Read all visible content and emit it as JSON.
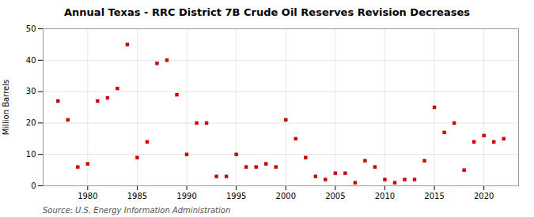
{
  "chart_data": {
    "type": "scatter",
    "title": "Annual Texas - RRC District 7B Crude Oil Reserves Revision Decreases",
    "ylabel": "Million Barrels",
    "source": "Source: U.S. Energy Information Administration",
    "color": "#cc0000",
    "marker": "square",
    "grid": true,
    "xlim": [
      1975.5,
      2023.5
    ],
    "ylim": [
      0,
      50
    ],
    "xticks": [
      1980,
      1985,
      1990,
      1995,
      2000,
      2005,
      2010,
      2015,
      2020
    ],
    "yticks": [
      0,
      10,
      20,
      30,
      40,
      50
    ],
    "x": [
      1977,
      1978,
      1979,
      1980,
      1981,
      1982,
      1983,
      1984,
      1985,
      1986,
      1987,
      1988,
      1989,
      1990,
      1991,
      1992,
      1993,
      1994,
      1995,
      1996,
      1997,
      1998,
      1999,
      2000,
      2001,
      2002,
      2003,
      2004,
      2005,
      2006,
      2007,
      2008,
      2009,
      2010,
      2011,
      2012,
      2013,
      2014,
      2015,
      2016,
      2017,
      2018,
      2019,
      2020,
      2021,
      2022
    ],
    "values": [
      27,
      21,
      6,
      7,
      27,
      28,
      31,
      45,
      9,
      14,
      39,
      40,
      29,
      10,
      20,
      20,
      3,
      3,
      10,
      6,
      6,
      7,
      6,
      21,
      15,
      9,
      3,
      2,
      4,
      4,
      1,
      8,
      6,
      2,
      1,
      2,
      2,
      8,
      25,
      17,
      20,
      5,
      14,
      16,
      14,
      15
    ]
  }
}
